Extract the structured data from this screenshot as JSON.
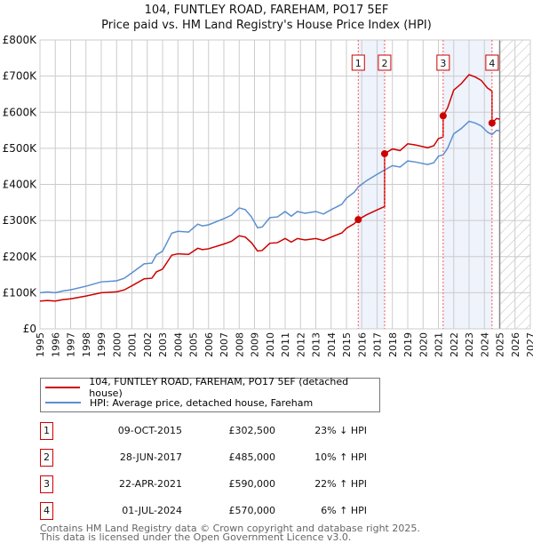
{
  "chart_data": {
    "type": "line",
    "title": "104, FUNTLEY ROAD, FAREHAM, PO17 5EF",
    "subtitle": "Price paid vs. HM Land Registry's House Price Index (HPI)",
    "xlim": [
      1995,
      2027
    ],
    "ylim": [
      0,
      800000
    ],
    "y_ticks": [
      "£0",
      "£100K",
      "£200K",
      "£300K",
      "£400K",
      "£500K",
      "£600K",
      "£700K",
      "£800K"
    ],
    "x_ticks": [
      "1995",
      "1996",
      "1997",
      "1998",
      "1999",
      "2000",
      "2001",
      "2002",
      "2003",
      "2004",
      "2005",
      "2006",
      "2007",
      "2008",
      "2009",
      "2010",
      "2011",
      "2012",
      "2013",
      "2014",
      "2015",
      "2016",
      "2017",
      "2018",
      "2019",
      "2020",
      "2021",
      "2022",
      "2023",
      "2024",
      "2025",
      "2026",
      "2027"
    ],
    "grid": true,
    "forecast_from": 2025.0,
    "shaded_ranges": [
      [
        2015.77,
        2017.49
      ],
      [
        2021.31,
        2024.5
      ]
    ],
    "series": [
      {
        "name": "104, FUNTLEY ROAD, FAREHAM, PO17 5EF (detached house)",
        "color": "#cc0000",
        "derived_from": "hpi_and_sales"
      },
      {
        "name": "HPI: Average price, detached house, Fareham",
        "color": "#5b8fd0",
        "x": [
          1995,
          1995.5,
          1996,
          1996.5,
          1997,
          1998,
          1999,
          2000,
          2000.5,
          2001,
          2001.8,
          2002.3,
          2002.6,
          2003,
          2003.6,
          2004,
          2004.7,
          2005.3,
          2005.6,
          2006,
          2007,
          2007.5,
          2008,
          2008.4,
          2008.8,
          2009.2,
          2009.5,
          2010,
          2010.5,
          2011,
          2011.4,
          2011.8,
          2012.3,
          2013,
          2013.5,
          2014,
          2014.7,
          2015,
          2015.5,
          2015.77,
          2016.3,
          2017,
          2017.49,
          2018,
          2018.5,
          2019,
          2019.5,
          2020.3,
          2020.7,
          2021,
          2021.31,
          2021.6,
          2022,
          2022.5,
          2023,
          2023.4,
          2023.8,
          2024.2,
          2024.5,
          2024.8,
          2025
        ],
        "y": [
          100000,
          102000,
          100000,
          105000,
          108000,
          118000,
          130000,
          133000,
          140000,
          155000,
          180000,
          182000,
          205000,
          215000,
          265000,
          270000,
          268000,
          290000,
          285000,
          288000,
          305000,
          315000,
          335000,
          330000,
          310000,
          280000,
          282000,
          308000,
          310000,
          325000,
          312000,
          325000,
          320000,
          325000,
          318000,
          330000,
          345000,
          362000,
          378000,
          393000,
          410000,
          428000,
          440000,
          452000,
          448000,
          465000,
          462000,
          455000,
          460000,
          478000,
          482000,
          500000,
          540000,
          555000,
          575000,
          570000,
          562000,
          545000,
          538000,
          550000,
          548000
        ]
      }
    ],
    "annotations": [
      {
        "label": "1",
        "x": 2015.77,
        "value": 302500
      },
      {
        "label": "2",
        "x": 2017.49,
        "value": 485000
      },
      {
        "label": "3",
        "x": 2021.31,
        "value": 590000
      },
      {
        "label": "4",
        "x": 2024.5,
        "value": 570000
      }
    ]
  },
  "legend": {
    "property": "104, FUNTLEY ROAD, FAREHAM, PO17 5EF (detached house)",
    "hpi": "HPI: Average price, detached house, Fareham"
  },
  "sales": [
    {
      "num": "1",
      "date": "09-OCT-2015",
      "price": "£302,500",
      "hpi": "23% ↓ HPI"
    },
    {
      "num": "2",
      "date": "28-JUN-2017",
      "price": "£485,000",
      "hpi": "10% ↑ HPI"
    },
    {
      "num": "3",
      "date": "22-APR-2021",
      "price": "£590,000",
      "hpi": "22% ↑ HPI"
    },
    {
      "num": "4",
      "date": "01-JUL-2024",
      "price": "£570,000",
      "hpi": "6% ↑ HPI"
    }
  ],
  "footer": {
    "line1": "Contains HM Land Registry data © Crown copyright and database right 2025.",
    "line2": "This data is licensed under the Open Government Licence v3.0."
  }
}
